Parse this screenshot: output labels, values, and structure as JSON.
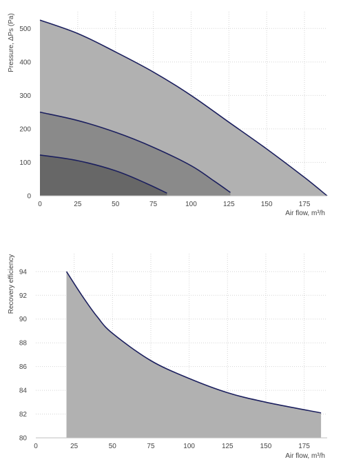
{
  "chart_data": [
    {
      "type": "area",
      "ylabel": "Pressure, ΔPs (Pa)",
      "xlabel": "Air flow, m³/h",
      "xlim": [
        0,
        190
      ],
      "ylim": [
        0,
        550
      ],
      "x_ticks": [
        "0",
        "25",
        "50",
        "75",
        "100",
        "125",
        "150",
        "175"
      ],
      "y_ticks": [
        "0",
        "100",
        "200",
        "300",
        "400",
        "500"
      ],
      "grid": true,
      "series": [
        {
          "values": [
            [
              0,
              525
            ],
            [
              25,
              485
            ],
            [
              50,
              430
            ],
            [
              75,
              370
            ],
            [
              100,
              300
            ],
            [
              125,
              220
            ],
            [
              150,
              140
            ],
            [
              175,
              55
            ],
            [
              190,
              0
            ]
          ],
          "fill": "#b1b1b1"
        },
        {
          "values": [
            [
              0,
              250
            ],
            [
              25,
              225
            ],
            [
              50,
              190
            ],
            [
              75,
              145
            ],
            [
              100,
              90
            ],
            [
              115,
              45
            ],
            [
              126,
              10
            ]
          ],
          "fill": "#8a8a8a"
        },
        {
          "values": [
            [
              0,
              122
            ],
            [
              25,
              105
            ],
            [
              50,
              75
            ],
            [
              70,
              38
            ],
            [
              84,
              8
            ]
          ],
          "fill": "#676767"
        }
      ],
      "line_color": "#1b1f5e"
    },
    {
      "type": "area",
      "ylabel": "Recovery efficiency",
      "xlabel": "Air flow, m³/h",
      "xlim": [
        0,
        190
      ],
      "ylim": [
        80,
        95.5
      ],
      "x_ticks": [
        "0",
        "25",
        "50",
        "75",
        "100",
        "125",
        "150",
        "175"
      ],
      "y_ticks": [
        "80",
        "82",
        "84",
        "86",
        "88",
        "90",
        "92",
        "94"
      ],
      "grid": true,
      "series": [
        {
          "values": [
            [
              20,
              94
            ],
            [
              30,
              92
            ],
            [
              40,
              90.2
            ],
            [
              50,
              88.8
            ],
            [
              75,
              86.5
            ],
            [
              100,
              85
            ],
            [
              125,
              83.8
            ],
            [
              150,
              83
            ],
            [
              186,
              82.1
            ]
          ],
          "fill": "#b1b1b1"
        }
      ],
      "line_color": "#1b1f5e"
    }
  ]
}
